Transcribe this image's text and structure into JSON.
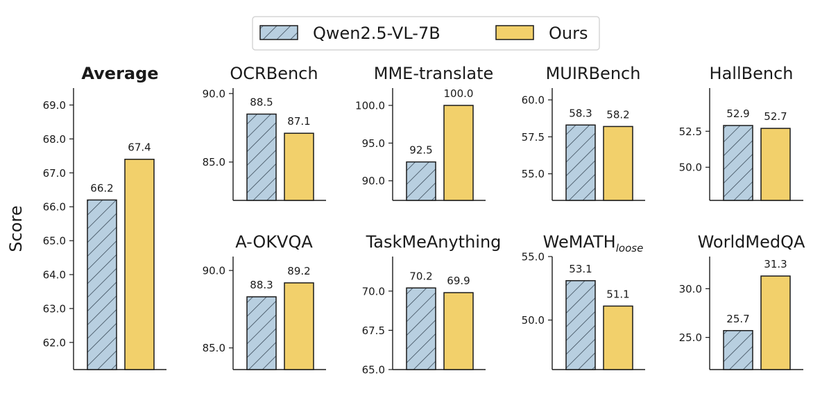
{
  "chart_data": {
    "type": "bar",
    "ylabel": "Score",
    "legend": {
      "location": "top-center",
      "series": [
        {
          "name": "Qwen2.5-VL-7B",
          "color": "#b8cfe0",
          "hatch": true
        },
        {
          "name": "Ours",
          "color": "#f2d06b",
          "hatch": false
        }
      ]
    },
    "panels": [
      {
        "title": "Average",
        "bold": true,
        "series_values": [
          66.2,
          67.4
        ],
        "value_labels": [
          "66.2",
          "67.4"
        ],
        "ylim": [
          61.2,
          69.5
        ],
        "yticks": [
          62.0,
          63.0,
          64.0,
          65.0,
          66.0,
          67.0,
          68.0,
          69.0
        ],
        "ytick_labels": [
          "62.0",
          "63.0",
          "64.0",
          "65.0",
          "66.0",
          "67.0",
          "68.0",
          "69.0"
        ]
      },
      {
        "title": "OCRBench",
        "series_values": [
          88.5,
          87.1
        ],
        "value_labels": [
          "88.5",
          "87.1"
        ],
        "ylim": [
          82.2,
          90.4
        ],
        "yticks": [
          85.0,
          90.0
        ],
        "ytick_labels": [
          "85.0",
          "90.0"
        ]
      },
      {
        "title": "MME-translate",
        "series_values": [
          92.5,
          100.0
        ],
        "value_labels": [
          "92.5",
          "100.0"
        ],
        "ylim": [
          87.4,
          102.3
        ],
        "yticks": [
          90.0,
          95.0,
          100.0
        ],
        "ytick_labels": [
          "90.0",
          "95.0",
          "100.0"
        ]
      },
      {
        "title": "MUIRBench",
        "series_values": [
          58.3,
          58.2
        ],
        "value_labels": [
          "58.3",
          "58.2"
        ],
        "ylim": [
          53.2,
          60.8
        ],
        "yticks": [
          55.0,
          57.5,
          60.0
        ],
        "ytick_labels": [
          "55.0",
          "57.5",
          "60.0"
        ]
      },
      {
        "title": "HallBench",
        "series_values": [
          52.9,
          52.7
        ],
        "value_labels": [
          "52.9",
          "52.7"
        ],
        "ylim": [
          47.7,
          55.5
        ],
        "yticks": [
          50.0,
          52.5
        ],
        "ytick_labels": [
          "50.0",
          "52.5"
        ]
      },
      {
        "title": "A-OKVQA",
        "series_values": [
          88.3,
          89.2
        ],
        "value_labels": [
          "88.3",
          "89.2"
        ],
        "ylim": [
          83.6,
          90.9
        ],
        "yticks": [
          85.0,
          90.0
        ],
        "ytick_labels": [
          "85.0",
          "90.0"
        ]
      },
      {
        "title": "TaskMeAnything",
        "series_values": [
          70.2,
          69.9
        ],
        "value_labels": [
          "70.2",
          "69.9"
        ],
        "ylim": [
          65.0,
          72.2
        ],
        "yticks": [
          65.0,
          67.5,
          70.0
        ],
        "ytick_labels": [
          "65.0",
          "67.5",
          "70.0"
        ]
      },
      {
        "title": "WeMATH",
        "title_sub": "loose",
        "series_values": [
          53.1,
          51.1
        ],
        "value_labels": [
          "53.1",
          "51.1"
        ],
        "ylim": [
          46.1,
          55.0
        ],
        "yticks": [
          50.0,
          55.0
        ],
        "ytick_labels": [
          "50.0",
          "55.0"
        ]
      },
      {
        "title": "WorldMedQA",
        "series_values": [
          25.7,
          31.3
        ],
        "value_labels": [
          "25.7",
          "31.3"
        ],
        "ylim": [
          21.7,
          33.3
        ],
        "yticks": [
          25.0,
          30.0
        ],
        "ytick_labels": [
          "25.0",
          "30.0"
        ]
      }
    ]
  }
}
